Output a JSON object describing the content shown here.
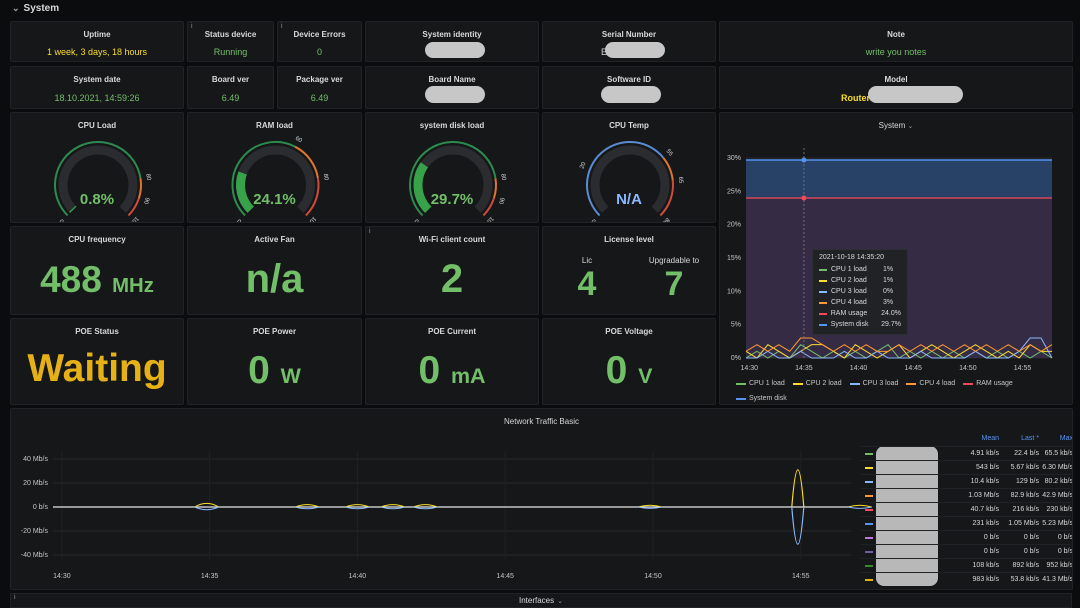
{
  "row": {
    "title": "System"
  },
  "stats": {
    "uptime": {
      "title": "Uptime",
      "value": "1 week, 3 days, 18 hours"
    },
    "status_device": {
      "title": "Status device",
      "value": "Running"
    },
    "device_errors": {
      "title": "Device Errors",
      "value": "0"
    },
    "system_identity": {
      "title": "System identity"
    },
    "serial_number": {
      "title": "Serial Number",
      "value_prefix": "E"
    },
    "note": {
      "title": "Note",
      "value": "write you notes"
    },
    "system_date": {
      "title": "System date",
      "value": "18.10.2021, 14:59:26"
    },
    "board_ver": {
      "title": "Board ver",
      "value": "6.49"
    },
    "package_ver": {
      "title": "Package ver",
      "value": "6.49"
    },
    "board_name": {
      "title": "Board Name"
    },
    "software_id": {
      "title": "Software ID"
    },
    "model": {
      "title": "Model",
      "value_prefix": "RouterOS F"
    }
  },
  "gauges": [
    {
      "title": "CPU Load",
      "value_text": "0.8%",
      "value": 0.8,
      "min": 0,
      "max": 100,
      "ticks": [
        "0",
        "80",
        "90",
        "100"
      ],
      "thresholds": [
        80,
        90
      ]
    },
    {
      "title": "RAM load",
      "value_text": "24.1%",
      "value": 24.1,
      "min": 0,
      "max": 100,
      "ticks": [
        "0",
        "60",
        "80",
        "100"
      ],
      "thresholds": [
        60,
        80
      ]
    },
    {
      "title": "system disk load",
      "value_text": "29.7%",
      "value": 29.7,
      "min": 0,
      "max": 100,
      "ticks": [
        "0",
        "80",
        "90",
        "100"
      ],
      "thresholds": [
        80,
        90
      ]
    },
    {
      "title": "CPU Temp",
      "value_text": "N/A",
      "value": 0,
      "min": 0,
      "max": 80,
      "ticks": [
        "0",
        "20",
        "55",
        "65",
        "80"
      ],
      "thresholds": [
        55,
        65
      ]
    }
  ],
  "cpu_frequency": {
    "title": "CPU frequency",
    "value": "488",
    "unit": "MHz"
  },
  "active_fan": {
    "title": "Active Fan",
    "value": "n/a"
  },
  "wifi_clients": {
    "title": "Wi-Fi client count",
    "value": "2"
  },
  "license": {
    "title": "License level",
    "lic_label": "Lic",
    "lic_value": "4",
    "up_label": "Upgradable to",
    "up_value": "7"
  },
  "poe_status": {
    "title": "POE Status",
    "value": "Waiting"
  },
  "poe_power": {
    "title": "POE Power",
    "value": "0",
    "unit": "W"
  },
  "poe_current": {
    "title": "POE Current",
    "value": "0",
    "unit": "mA"
  },
  "poe_voltage": {
    "title": "POE Voltage",
    "value": "0",
    "unit": "V"
  },
  "system_chart": {
    "title": "System",
    "title_chevron": "⌄",
    "yticks": [
      "0%",
      "5%",
      "10%",
      "15%",
      "20%",
      "25%",
      "30%"
    ],
    "xticks": [
      "14:30",
      "14:35",
      "14:40",
      "14:45",
      "14:50",
      "14:55"
    ],
    "legend": [
      {
        "name": "CPU 1 load",
        "color": "#73bf69"
      },
      {
        "name": "CPU 2 load",
        "color": "#fade2a"
      },
      {
        "name": "CPU 3 load",
        "color": "#8ab8ff"
      },
      {
        "name": "CPU 4 load",
        "color": "#ff9830"
      },
      {
        "name": "RAM usage",
        "color": "#f2495c"
      },
      {
        "name": "System disk",
        "color": "#5794f2"
      }
    ],
    "tooltip": {
      "time": "2021-10-18 14:35:20",
      "rows": [
        {
          "name": "CPU 1 load",
          "value": "1%",
          "color": "#73bf69"
        },
        {
          "name": "CPU 2 load",
          "value": "1%",
          "color": "#fade2a"
        },
        {
          "name": "CPU 3 load",
          "value": "0%",
          "color": "#8ab8ff"
        },
        {
          "name": "CPU 4 load",
          "value": "3%",
          "color": "#ff9830"
        },
        {
          "name": "RAM usage",
          "value": "24.0%",
          "color": "#f2495c"
        },
        {
          "name": "System disk",
          "value": "29.7%",
          "color": "#5794f2"
        }
      ]
    }
  },
  "network_chart": {
    "title": "Network Traffic Basic",
    "yticks": [
      "40 Mb/s",
      "20 Mb/s",
      "0 b/s",
      "-20 Mb/s",
      "-40 Mb/s"
    ],
    "xticks": [
      "14:30",
      "14:35",
      "14:40",
      "14:45",
      "14:50",
      "14:55"
    ],
    "legend_headers": {
      "mean": "Mean",
      "last": "Last *",
      "max": "Max"
    },
    "legend_rows": [
      {
        "color": "#73bf69",
        "mean": "4.91 kb/s",
        "last": "22.4 b/s",
        "max": "65.5 kb/s"
      },
      {
        "color": "#fade2a",
        "mean": "543 b/s",
        "last": "5.67 kb/s",
        "max": "6.30 Mb/s"
      },
      {
        "color": "#8ab8ff",
        "mean": "10.4 kb/s",
        "last": "129 b/s",
        "max": "80.2 kb/s"
      },
      {
        "color": "#ff9830",
        "mean": "1.03 Mb/s",
        "last": "82.9 kb/s",
        "max": "42.9 Mb/s"
      },
      {
        "color": "#f2495c",
        "mean": "40.7 kb/s",
        "last": "216 kb/s",
        "max": "230 kb/s"
      },
      {
        "color": "#5794f2",
        "mean": "231 kb/s",
        "last": "1.05 Mb/s",
        "max": "5.23 Mb/s"
      },
      {
        "color": "#b877d9",
        "mean": "0 b/s",
        "last": "0 b/s",
        "max": "0 b/s"
      },
      {
        "color": "#705da0",
        "mean": "0 b/s",
        "last": "0 b/s",
        "max": "0 b/s"
      },
      {
        "color": "#37872d",
        "mean": "108 kb/s",
        "last": "892 kb/s",
        "max": "952 kb/s"
      },
      {
        "color": "#e0b400",
        "mean": "983 kb/s",
        "last": "53.8 kb/s",
        "max": "41.3 Mb/s"
      }
    ]
  },
  "interfaces": {
    "title": "Interfaces",
    "chevron": "⌄"
  }
}
